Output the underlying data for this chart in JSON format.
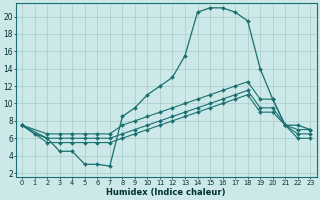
{
  "xlabel": "Humidex (Indice chaleur)",
  "bg_color": "#cce8e8",
  "grid_color": "#aacccc",
  "line_color": "#1a7070",
  "xlim": [
    -0.5,
    23.5
  ],
  "ylim": [
    1.5,
    21.5
  ],
  "yticks": [
    2,
    4,
    6,
    8,
    10,
    12,
    14,
    16,
    18,
    20
  ],
  "xticks": [
    0,
    1,
    2,
    3,
    4,
    5,
    6,
    7,
    8,
    9,
    10,
    11,
    12,
    13,
    14,
    15,
    16,
    17,
    18,
    19,
    20,
    21,
    22,
    23
  ],
  "line1_x": [
    0,
    1,
    2,
    3,
    4,
    5,
    6,
    7,
    8,
    9,
    10,
    11,
    12,
    13,
    14,
    15,
    16,
    17,
    18,
    19,
    20,
    21,
    22,
    23
  ],
  "line1_y": [
    7.5,
    6.5,
    6.0,
    4.5,
    4.5,
    3.0,
    3.0,
    2.8,
    8.5,
    9.5,
    11.0,
    12.0,
    13.0,
    15.5,
    20.5,
    21.0,
    21.0,
    20.5,
    19.5,
    14.0,
    10.5,
    7.5,
    7.5,
    7.0
  ],
  "line2_x": [
    0,
    2,
    3,
    4,
    5,
    6,
    7,
    8,
    9,
    10,
    11,
    12,
    13,
    14,
    15,
    16,
    17,
    18,
    19,
    20,
    21,
    22,
    23
  ],
  "line2_y": [
    7.5,
    6.5,
    6.5,
    6.5,
    6.5,
    6.5,
    6.5,
    7.5,
    8.0,
    8.5,
    9.0,
    9.5,
    10.0,
    10.5,
    11.0,
    11.5,
    12.0,
    12.5,
    10.5,
    10.5,
    7.5,
    7.0,
    7.0
  ],
  "line3_x": [
    0,
    2,
    3,
    4,
    5,
    6,
    7,
    8,
    9,
    10,
    11,
    12,
    13,
    14,
    15,
    16,
    17,
    18,
    19,
    20,
    21,
    22,
    23
  ],
  "line3_y": [
    7.5,
    6.0,
    6.0,
    6.0,
    6.0,
    6.0,
    6.0,
    6.5,
    7.0,
    7.5,
    8.0,
    8.5,
    9.0,
    9.5,
    10.0,
    10.5,
    11.0,
    11.5,
    9.5,
    9.5,
    7.5,
    6.5,
    6.5
  ],
  "line4_x": [
    0,
    2,
    3,
    4,
    5,
    6,
    7,
    8,
    9,
    10,
    11,
    12,
    13,
    14,
    15,
    16,
    17,
    18,
    19,
    20,
    21,
    22,
    23
  ],
  "line4_y": [
    7.5,
    5.5,
    5.5,
    5.5,
    5.5,
    5.5,
    5.5,
    6.0,
    6.5,
    7.0,
    7.5,
    8.0,
    8.5,
    9.0,
    9.5,
    10.0,
    10.5,
    11.0,
    9.0,
    9.0,
    7.5,
    6.0,
    6.0
  ]
}
